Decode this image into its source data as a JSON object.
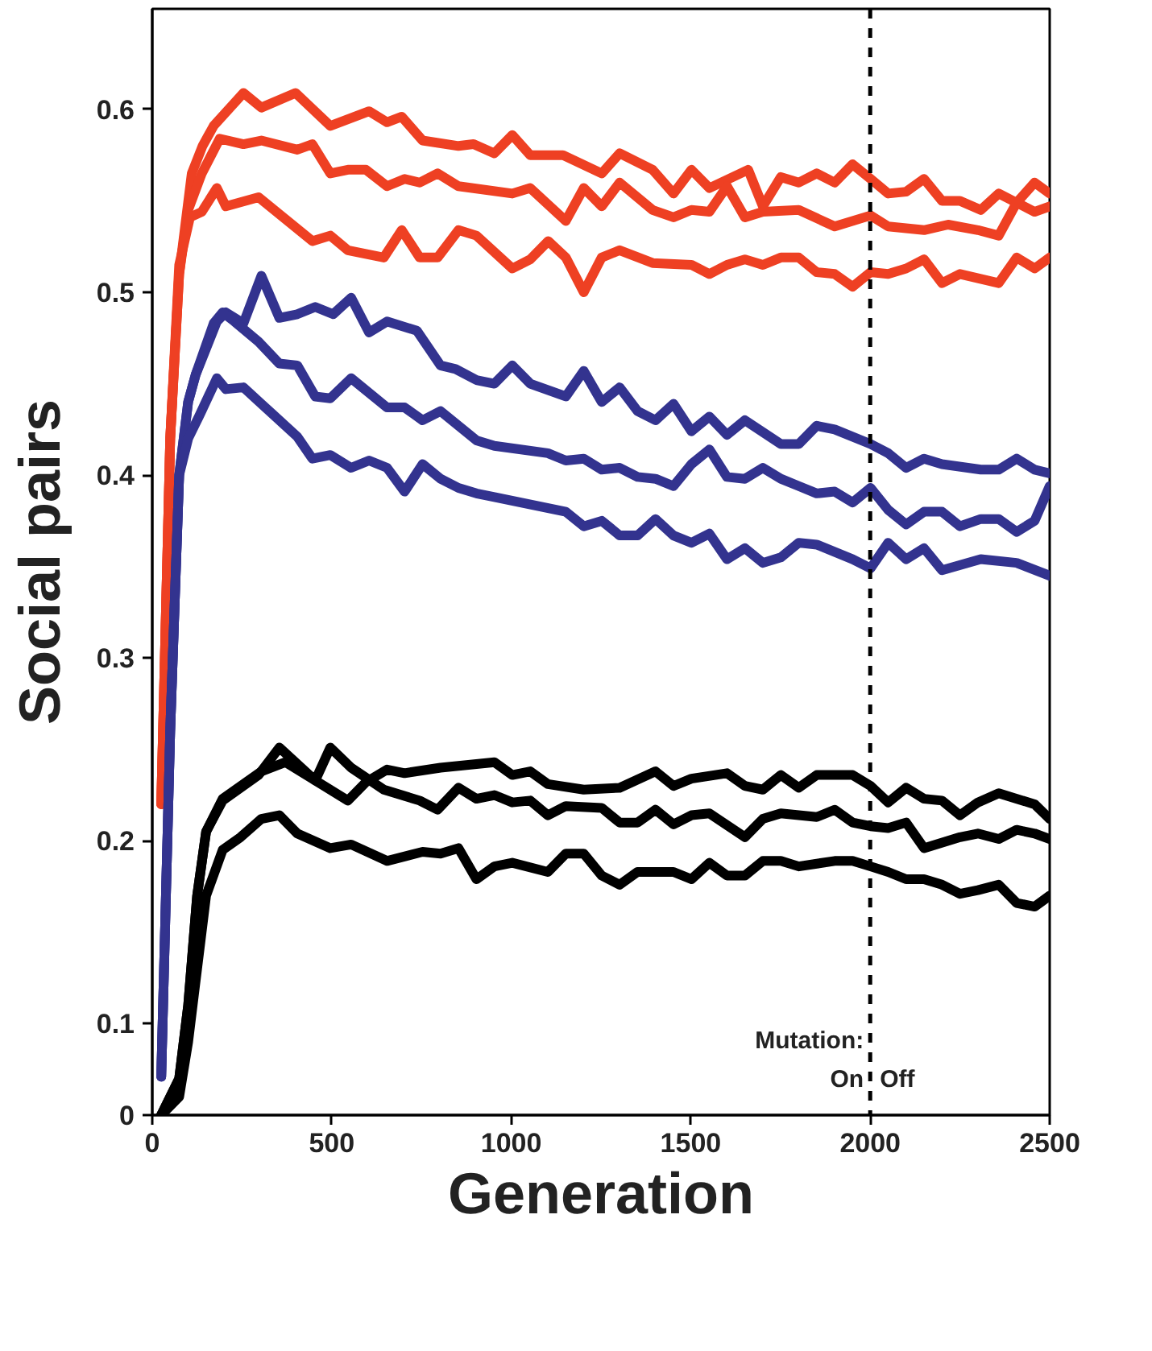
{
  "chart_data": {
    "type": "line",
    "xlabel": "Generation",
    "ylabel": "Social pairs",
    "xlim": [
      0,
      2500
    ],
    "xticks": [
      0,
      500,
      1000,
      1500,
      2000,
      2500
    ],
    "ylim": [
      0.05,
      0.655
    ],
    "yticks": [
      {
        "value": 0.05,
        "label": "0"
      },
      0.1,
      0.2,
      0.3,
      0.4,
      0.5,
      0.6
    ],
    "grid": false,
    "marker": "none",
    "line_style": "solid",
    "ref_lines": [
      {
        "axis": "x",
        "value": 2000,
        "line_style": "dashed",
        "color": "#000000"
      }
    ],
    "annotations": [
      "Mutation:",
      "On",
      "Off"
    ],
    "series": [
      {
        "color": "#ee4023",
        "x": [
          25,
          50,
          75,
          110,
          140,
          171,
          254,
          304,
          399,
          496,
          604,
          654,
          695,
          753,
          853,
          895,
          953,
          1003,
          1053,
          1144,
          1252,
          1302,
          1394,
          1452,
          1502,
          1552,
          1660,
          1701,
          1751,
          1801,
          1851,
          1901,
          1951,
          2001,
          2050,
          2100,
          2150,
          2200,
          2250,
          2308,
          2358,
          2408,
          2458,
          2500
        ],
        "values": [
          0.22,
          0.42,
          0.51,
          0.565,
          0.58,
          0.591,
          0.609,
          0.601,
          0.609,
          0.591,
          0.599,
          0.593,
          0.596,
          0.583,
          0.58,
          0.581,
          0.576,
          0.586,
          0.575,
          0.575,
          0.565,
          0.576,
          0.567,
          0.554,
          0.567,
          0.557,
          0.567,
          0.547,
          0.563,
          0.56,
          0.565,
          0.56,
          0.57,
          0.562,
          0.554,
          0.555,
          0.562,
          0.55,
          0.55,
          0.545,
          0.554,
          0.549,
          0.56,
          0.554
        ]
      },
      {
        "color": "#ee4023",
        "x": [
          25,
          50,
          75,
          100,
          138,
          188,
          254,
          304,
          404,
          446,
          496,
          545,
          595,
          654,
          703,
          745,
          795,
          853,
          1003,
          1053,
          1152,
          1202,
          1252,
          1302,
          1394,
          1452,
          1502,
          1552,
          1601,
          1651,
          1701,
          1801,
          1901,
          2001,
          2050,
          2150,
          2217,
          2300,
          2358,
          2408,
          2458,
          2500
        ],
        "values": [
          0.22,
          0.42,
          0.51,
          0.545,
          0.565,
          0.584,
          0.581,
          0.583,
          0.578,
          0.581,
          0.565,
          0.567,
          0.567,
          0.558,
          0.562,
          0.56,
          0.565,
          0.558,
          0.554,
          0.557,
          0.539,
          0.557,
          0.547,
          0.56,
          0.545,
          0.541,
          0.545,
          0.544,
          0.558,
          0.541,
          0.544,
          0.545,
          0.536,
          0.542,
          0.536,
          0.534,
          0.537,
          0.534,
          0.531,
          0.549,
          0.544,
          0.547
        ]
      },
      {
        "color": "#ee4023",
        "x": [
          25,
          50,
          75,
          105,
          138,
          180,
          205,
          296,
          446,
          496,
          545,
          645,
          695,
          745,
          795,
          853,
          903,
          1003,
          1053,
          1103,
          1152,
          1202,
          1252,
          1302,
          1394,
          1502,
          1552,
          1601,
          1651,
          1701,
          1751,
          1801,
          1851,
          1901,
          1951,
          2001,
          2050,
          2100,
          2150,
          2200,
          2250,
          2358,
          2408,
          2458,
          2500
        ],
        "values": [
          0.22,
          0.42,
          0.515,
          0.541,
          0.544,
          0.557,
          0.547,
          0.552,
          0.528,
          0.531,
          0.523,
          0.519,
          0.534,
          0.519,
          0.519,
          0.534,
          0.531,
          0.513,
          0.518,
          0.528,
          0.519,
          0.5,
          0.519,
          0.523,
          0.516,
          0.515,
          0.51,
          0.515,
          0.518,
          0.515,
          0.519,
          0.519,
          0.511,
          0.51,
          0.503,
          0.511,
          0.51,
          0.513,
          0.518,
          0.505,
          0.51,
          0.505,
          0.519,
          0.513,
          0.519
        ]
      },
      {
        "color": "#33338f",
        "x": [
          25,
          50,
          75,
          100,
          121,
          180,
          205,
          254,
          304,
          354,
          404,
          454,
          504,
          554,
          604,
          654,
          737,
          803,
          845,
          903,
          953,
          1003,
          1053,
          1152,
          1202,
          1252,
          1302,
          1352,
          1402,
          1452,
          1502,
          1552,
          1601,
          1651,
          1751,
          1801,
          1851,
          1901,
          2001,
          2050,
          2100,
          2150,
          2200,
          2308,
          2358,
          2408,
          2458,
          2500
        ],
        "values": [
          0.071,
          0.26,
          0.4,
          0.44,
          0.455,
          0.484,
          0.489,
          0.483,
          0.509,
          0.486,
          0.488,
          0.492,
          0.488,
          0.497,
          0.478,
          0.484,
          0.479,
          0.46,
          0.458,
          0.452,
          0.45,
          0.46,
          0.45,
          0.443,
          0.457,
          0.44,
          0.448,
          0.435,
          0.43,
          0.439,
          0.424,
          0.432,
          0.422,
          0.43,
          0.417,
          0.417,
          0.427,
          0.425,
          0.417,
          0.412,
          0.404,
          0.409,
          0.406,
          0.403,
          0.403,
          0.409,
          0.403,
          0.401
        ]
      },
      {
        "color": "#33338f",
        "x": [
          25,
          50,
          75,
          100,
          121,
          171,
          196,
          229,
          296,
          354,
          404,
          454,
          496,
          554,
          654,
          703,
          753,
          803,
          903,
          953,
          1102,
          1152,
          1202,
          1252,
          1302,
          1352,
          1402,
          1452,
          1502,
          1552,
          1601,
          1651,
          1701,
          1751,
          1801,
          1851,
          1901,
          1951,
          2001,
          2050,
          2100,
          2150,
          2200,
          2250,
          2308,
          2358,
          2408,
          2458,
          2500
        ],
        "values": [
          0.071,
          0.26,
          0.4,
          0.44,
          0.455,
          0.483,
          0.489,
          0.484,
          0.473,
          0.461,
          0.46,
          0.443,
          0.442,
          0.453,
          0.437,
          0.437,
          0.43,
          0.435,
          0.419,
          0.416,
          0.412,
          0.408,
          0.409,
          0.403,
          0.404,
          0.399,
          0.398,
          0.394,
          0.406,
          0.414,
          0.399,
          0.398,
          0.404,
          0.398,
          0.394,
          0.39,
          0.391,
          0.385,
          0.393,
          0.381,
          0.373,
          0.38,
          0.38,
          0.372,
          0.376,
          0.376,
          0.369,
          0.375,
          0.394
        ]
      },
      {
        "color": "#33338f",
        "x": [
          25,
          50,
          75,
          100,
          130,
          180,
          205,
          254,
          304,
          404,
          446,
          496,
          554,
          604,
          654,
          703,
          753,
          803,
          853,
          903,
          953,
          1152,
          1202,
          1252,
          1302,
          1352,
          1402,
          1452,
          1502,
          1552,
          1601,
          1651,
          1701,
          1751,
          1801,
          1851,
          1951,
          2001,
          2050,
          2100,
          2150,
          2200,
          2308,
          2408,
          2500
        ],
        "values": [
          0.071,
          0.26,
          0.4,
          0.42,
          0.432,
          0.453,
          0.447,
          0.448,
          0.439,
          0.421,
          0.409,
          0.411,
          0.404,
          0.408,
          0.404,
          0.391,
          0.406,
          0.398,
          0.393,
          0.39,
          0.388,
          0.38,
          0.372,
          0.375,
          0.367,
          0.367,
          0.376,
          0.367,
          0.363,
          0.368,
          0.354,
          0.36,
          0.352,
          0.355,
          0.363,
          0.362,
          0.354,
          0.349,
          0.363,
          0.354,
          0.36,
          0.348,
          0.354,
          0.352,
          0.345
        ]
      },
      {
        "color": "#000000",
        "x": [
          25,
          75,
          100,
          125,
          150,
          196,
          296,
          354,
          454,
          496,
          554,
          645,
          745,
          795,
          853,
          903,
          953,
          1003,
          1053,
          1102,
          1152,
          1252,
          1302,
          1352,
          1402,
          1452,
          1502,
          1552,
          1651,
          1701,
          1751,
          1851,
          1901,
          1951,
          2001,
          2050,
          2100,
          2150,
          2250,
          2300,
          2358,
          2408,
          2458,
          2500
        ],
        "values": [
          0.05,
          0.07,
          0.11,
          0.17,
          0.205,
          0.222,
          0.236,
          0.251,
          0.233,
          0.251,
          0.24,
          0.228,
          0.222,
          0.217,
          0.229,
          0.223,
          0.225,
          0.221,
          0.222,
          0.214,
          0.219,
          0.218,
          0.21,
          0.21,
          0.217,
          0.209,
          0.214,
          0.215,
          0.202,
          0.212,
          0.215,
          0.213,
          0.217,
          0.21,
          0.208,
          0.207,
          0.21,
          0.196,
          0.202,
          0.204,
          0.201,
          0.206,
          0.204,
          0.201
        ]
      },
      {
        "color": "#000000",
        "x": [
          25,
          75,
          100,
          125,
          150,
          196,
          304,
          371,
          454,
          545,
          595,
          654,
          703,
          803,
          953,
          1003,
          1053,
          1102,
          1202,
          1302,
          1402,
          1452,
          1502,
          1601,
          1651,
          1701,
          1751,
          1801,
          1851,
          1951,
          2001,
          2050,
          2100,
          2150,
          2200,
          2250,
          2300,
          2358,
          2458,
          2500
        ],
        "values": [
          0.05,
          0.07,
          0.11,
          0.17,
          0.205,
          0.223,
          0.238,
          0.243,
          0.233,
          0.222,
          0.232,
          0.239,
          0.237,
          0.24,
          0.243,
          0.236,
          0.238,
          0.231,
          0.228,
          0.229,
          0.238,
          0.23,
          0.234,
          0.237,
          0.23,
          0.228,
          0.236,
          0.229,
          0.236,
          0.236,
          0.23,
          0.221,
          0.229,
          0.223,
          0.222,
          0.214,
          0.221,
          0.226,
          0.22,
          0.212
        ]
      },
      {
        "color": "#000000",
        "x": [
          25,
          75,
          100,
          125,
          150,
          196,
          246,
          304,
          354,
          404,
          496,
          554,
          654,
          753,
          803,
          853,
          903,
          953,
          1003,
          1102,
          1152,
          1202,
          1252,
          1302,
          1352,
          1452,
          1502,
          1552,
          1601,
          1651,
          1701,
          1751,
          1801,
          1901,
          1951,
          2001,
          2050,
          2100,
          2150,
          2200,
          2250,
          2300,
          2358,
          2408,
          2458,
          2500
        ],
        "values": [
          0.05,
          0.06,
          0.09,
          0.13,
          0.17,
          0.195,
          0.202,
          0.212,
          0.214,
          0.204,
          0.196,
          0.198,
          0.189,
          0.194,
          0.193,
          0.196,
          0.179,
          0.186,
          0.188,
          0.183,
          0.193,
          0.193,
          0.181,
          0.176,
          0.183,
          0.183,
          0.179,
          0.188,
          0.181,
          0.181,
          0.189,
          0.189,
          0.186,
          0.189,
          0.189,
          0.186,
          0.183,
          0.179,
          0.179,
          0.176,
          0.171,
          0.173,
          0.176,
          0.166,
          0.164,
          0.17
        ]
      }
    ]
  }
}
